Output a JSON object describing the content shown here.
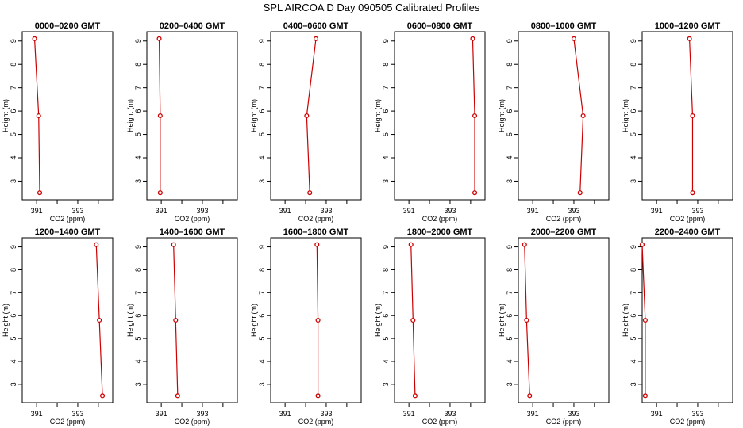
{
  "title": "SPL AIRCOA D  Day 090505  Calibrated Profiles",
  "colors": {
    "line": "#cc0000",
    "axis": "#000000"
  },
  "chart_data": [
    {
      "type": "line",
      "title": "0000–0200 GMT",
      "xlabel": "CO2 (ppm)",
      "ylabel": "Height (m)",
      "xlim": [
        390.3,
        394.7
      ],
      "ylim": [
        2.2,
        9.4
      ],
      "xticks": [
        "391",
        "393"
      ],
      "yticks": [
        "3",
        "4",
        "5",
        "6",
        "7",
        "8",
        "9"
      ],
      "series": [
        {
          "x": [
            390.9,
            391.1,
            391.15
          ],
          "y": [
            9.1,
            5.8,
            2.5
          ]
        }
      ]
    },
    {
      "type": "line",
      "title": "0200–0400 GMT",
      "xlabel": "CO2 (ppm)",
      "ylabel": "Height (m)",
      "xlim": [
        390.3,
        394.7
      ],
      "ylim": [
        2.2,
        9.4
      ],
      "xticks": [
        "391",
        "393"
      ],
      "yticks": [
        "3",
        "4",
        "5",
        "6",
        "7",
        "8",
        "9"
      ],
      "series": [
        {
          "x": [
            390.9,
            390.95,
            390.95
          ],
          "y": [
            9.1,
            5.8,
            2.5
          ]
        }
      ]
    },
    {
      "type": "line",
      "title": "0400–0600 GMT",
      "xlabel": "CO2 (ppm)",
      "ylabel": "Height (m)",
      "xlim": [
        390.3,
        394.7
      ],
      "ylim": [
        2.2,
        9.4
      ],
      "xticks": [
        "391",
        "393"
      ],
      "yticks": [
        "3",
        "4",
        "5",
        "6",
        "7",
        "8",
        "9"
      ],
      "series": [
        {
          "x": [
            392.5,
            392.05,
            392.2
          ],
          "y": [
            9.1,
            5.8,
            2.5
          ]
        }
      ]
    },
    {
      "type": "line",
      "title": "0600–0800 GMT",
      "xlabel": "CO2 (ppm)",
      "ylabel": "Height (m)",
      "xlim": [
        390.3,
        394.7
      ],
      "ylim": [
        2.2,
        9.4
      ],
      "xticks": [
        "391",
        "393"
      ],
      "yticks": [
        "3",
        "4",
        "5",
        "6",
        "7",
        "8",
        "9"
      ],
      "series": [
        {
          "x": [
            394.1,
            394.2,
            394.2
          ],
          "y": [
            9.1,
            5.8,
            2.5
          ]
        }
      ]
    },
    {
      "type": "line",
      "title": "0800–1000 GMT",
      "xlabel": "CO2 (ppm)",
      "ylabel": "Height (m)",
      "xlim": [
        390.3,
        394.7
      ],
      "ylim": [
        2.2,
        9.4
      ],
      "xticks": [
        "391",
        "393"
      ],
      "yticks": [
        "3",
        "4",
        "5",
        "6",
        "7",
        "8",
        "9"
      ],
      "series": [
        {
          "x": [
            393.0,
            393.45,
            393.3
          ],
          "y": [
            9.1,
            5.8,
            2.5
          ]
        }
      ]
    },
    {
      "type": "line",
      "title": "1000–1200 GMT",
      "xlabel": "CO2 (ppm)",
      "ylabel": "Height (m)",
      "xlim": [
        390.3,
        394.7
      ],
      "ylim": [
        2.2,
        9.4
      ],
      "xticks": [
        "391",
        "393"
      ],
      "yticks": [
        "3",
        "4",
        "5",
        "6",
        "7",
        "8",
        "9"
      ],
      "series": [
        {
          "x": [
            392.6,
            392.75,
            392.75
          ],
          "y": [
            9.1,
            5.8,
            2.5
          ]
        }
      ]
    },
    {
      "type": "line",
      "title": "1200–1400 GMT",
      "xlabel": "CO2 (ppm)",
      "ylabel": "Height (m)",
      "xlim": [
        390.3,
        394.7
      ],
      "ylim": [
        2.2,
        9.4
      ],
      "xticks": [
        "391",
        "393"
      ],
      "yticks": [
        "3",
        "4",
        "5",
        "6",
        "7",
        "8",
        "9"
      ],
      "series": [
        {
          "x": [
            393.9,
            394.05,
            394.2
          ],
          "y": [
            9.1,
            5.8,
            2.5
          ]
        }
      ]
    },
    {
      "type": "line",
      "title": "1400–1600 GMT",
      "xlabel": "CO2 (ppm)",
      "ylabel": "Height (m)",
      "xlim": [
        390.3,
        394.7
      ],
      "ylim": [
        2.2,
        9.4
      ],
      "xticks": [
        "391",
        "393"
      ],
      "yticks": [
        "3",
        "4",
        "5",
        "6",
        "7",
        "8",
        "9"
      ],
      "series": [
        {
          "x": [
            391.6,
            391.7,
            391.8
          ],
          "y": [
            9.1,
            5.8,
            2.5
          ]
        }
      ]
    },
    {
      "type": "line",
      "title": "1600–1800 GMT",
      "xlabel": "CO2 (ppm)",
      "ylabel": "Height (m)",
      "xlim": [
        390.3,
        394.7
      ],
      "ylim": [
        2.2,
        9.4
      ],
      "xticks": [
        "391",
        "393"
      ],
      "yticks": [
        "3",
        "4",
        "5",
        "6",
        "7",
        "8",
        "9"
      ],
      "series": [
        {
          "x": [
            392.55,
            392.6,
            392.6
          ],
          "y": [
            9.1,
            5.8,
            2.5
          ]
        }
      ]
    },
    {
      "type": "line",
      "title": "1800–2000 GMT",
      "xlabel": "CO2 (ppm)",
      "ylabel": "Height (m)",
      "xlim": [
        390.3,
        394.7
      ],
      "ylim": [
        2.2,
        9.4
      ],
      "xticks": [
        "391",
        "393"
      ],
      "yticks": [
        "3",
        "4",
        "5",
        "6",
        "7",
        "8",
        "9"
      ],
      "series": [
        {
          "x": [
            391.1,
            391.2,
            391.3
          ],
          "y": [
            9.1,
            5.8,
            2.5
          ]
        }
      ]
    },
    {
      "type": "line",
      "title": "2000–2200 GMT",
      "xlabel": "CO2 (ppm)",
      "ylabel": "Height (m)",
      "xlim": [
        390.3,
        394.7
      ],
      "ylim": [
        2.2,
        9.4
      ],
      "xticks": [
        "391",
        "393"
      ],
      "yticks": [
        "3",
        "4",
        "5",
        "6",
        "7",
        "8",
        "9"
      ],
      "series": [
        {
          "x": [
            390.6,
            390.7,
            390.85
          ],
          "y": [
            9.1,
            5.8,
            2.5
          ]
        }
      ]
    },
    {
      "type": "line",
      "title": "2200–2400 GMT",
      "xlabel": "CO2 (ppm)",
      "ylabel": "Height (m)",
      "xlim": [
        390.3,
        394.7
      ],
      "ylim": [
        2.2,
        9.4
      ],
      "xticks": [
        "391",
        "393"
      ],
      "yticks": [
        "3",
        "4",
        "5",
        "6",
        "7",
        "8",
        "9"
      ],
      "series": [
        {
          "x": [
            390.3,
            390.45,
            390.45
          ],
          "y": [
            9.1,
            5.8,
            2.5
          ]
        }
      ]
    }
  ]
}
